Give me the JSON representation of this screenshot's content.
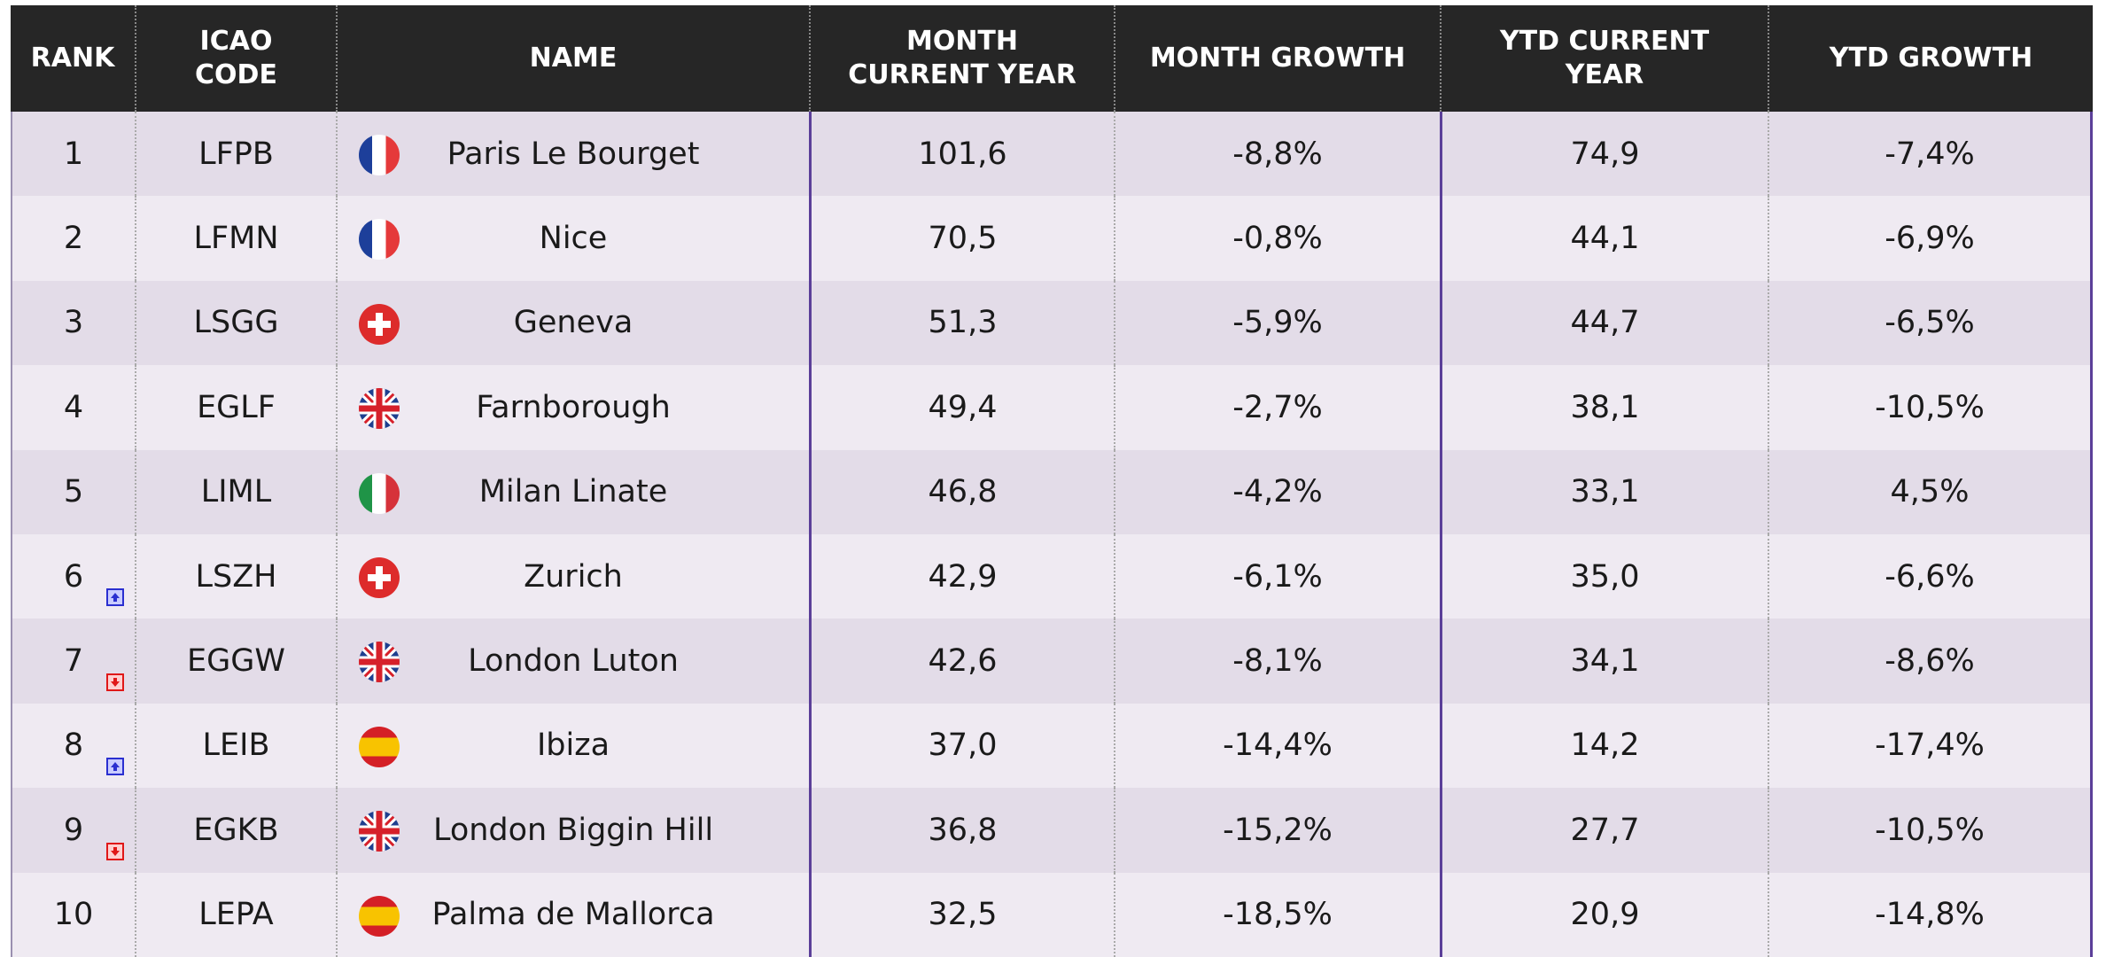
{
  "table": {
    "header": [
      "RANK",
      "ICAO CODE",
      "NAME",
      "MONTH CURRENT YEAR",
      "MONTH GROWTH",
      "YTD CURRENT YEAR",
      "YTD GROWTH"
    ],
    "rows": [
      [
        "1",
        "LFPB",
        "Paris Le Bourget",
        "101,6",
        "-8,8%",
        "74,9",
        "-7,4%"
      ],
      [
        "2",
        "LFMN",
        "Nice",
        "70,5",
        "-0,8%",
        "44,1",
        "-6,9%"
      ],
      [
        "3",
        "LSGG",
        "Geneva",
        "51,3",
        "-5,9%",
        "44,7",
        "-6,5%"
      ],
      [
        "4",
        "EGLF",
        "Farnborough",
        "49,4",
        "-2,7%",
        "38,1",
        "-10,5%"
      ],
      [
        "5",
        "LIML",
        "Milan Linate",
        "46,8",
        "-4,2%",
        "33,1",
        "4,5%"
      ],
      [
        "6",
        "LSZH",
        "Zurich",
        "42,9",
        "-6,1%",
        "35,0",
        "-6,6%"
      ],
      [
        "7",
        "EGGW",
        "London Luton",
        "42,6",
        "-8,1%",
        "34,1",
        "-8,6%"
      ],
      [
        "8",
        "LEIB",
        "Ibiza",
        "37,0",
        "-14,4%",
        "14,2",
        "-17,4%"
      ],
      [
        "9",
        "EGKB",
        "London Biggin Hill",
        "36,8",
        "-15,2%",
        "27,7",
        "-10,5%"
      ],
      [
        "10",
        "LEPA",
        "Palma de Mallorca",
        "32,5",
        "-18,5%",
        "20,9",
        "-14,8%"
      ]
    ]
  }
}
